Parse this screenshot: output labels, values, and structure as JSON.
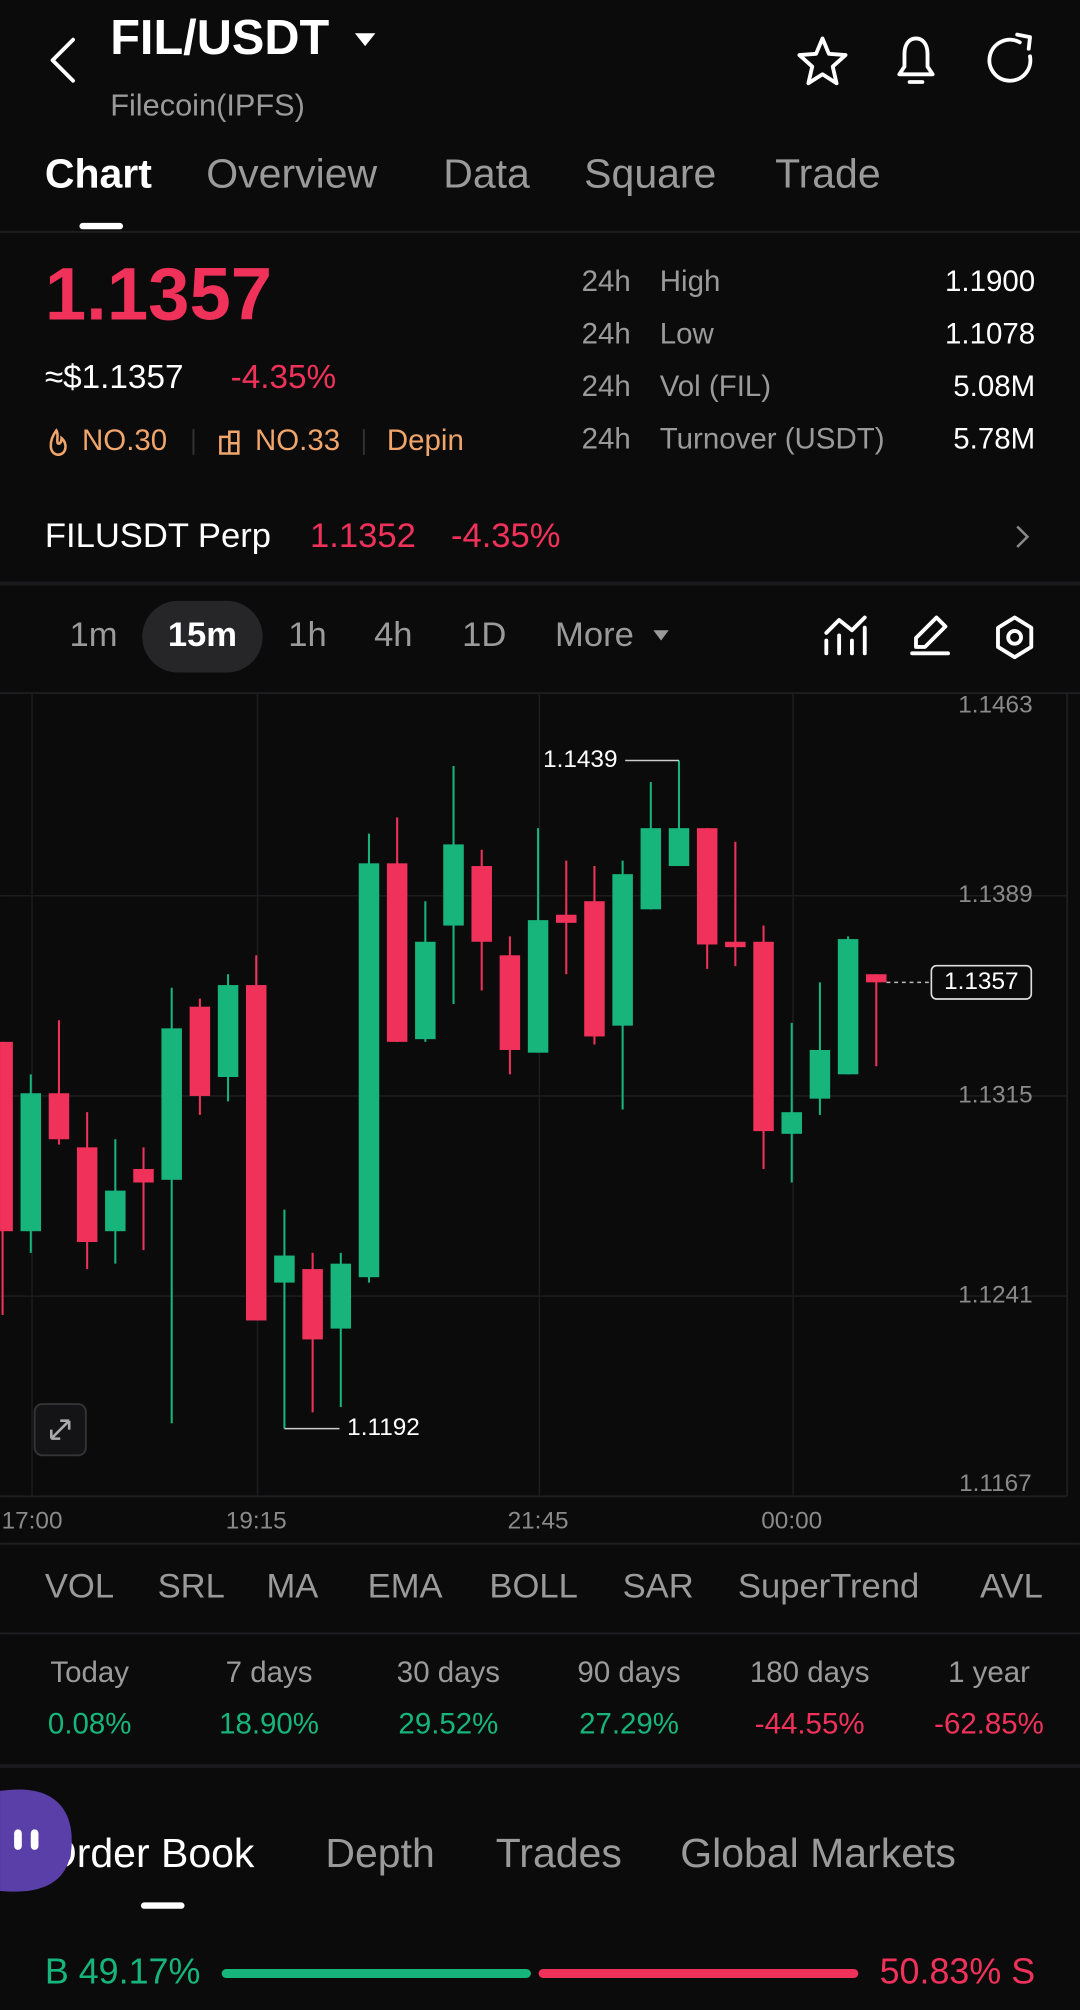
{
  "header": {
    "pair": "FIL/USDT",
    "name": "Filecoin(IPFS)"
  },
  "tabs": [
    "Chart",
    "Overview",
    "Data",
    "Square",
    "Trade"
  ],
  "active_tab": 0,
  "price": {
    "last": "1.1357",
    "usd": "≈$1.1357",
    "change": "-4.35%",
    "rank_hot": "NO.30",
    "rank_gain": "NO.33",
    "sector": "Depin"
  },
  "stats": [
    {
      "period": "24h",
      "label": "High",
      "value": "1.1900"
    },
    {
      "period": "24h",
      "label": "Low",
      "value": "1.1078"
    },
    {
      "period": "24h",
      "label": "Vol (FIL)",
      "value": "5.08M"
    },
    {
      "period": "24h",
      "label": "Turnover (USDT)",
      "value": "5.78M"
    }
  ],
  "perp": {
    "name": "FILUSDT Perp",
    "price": "1.1352",
    "change": "-4.35%"
  },
  "intervals": [
    "1m",
    "15m",
    "1h",
    "4h",
    "1D",
    "More"
  ],
  "selected_interval": 1,
  "chart_data": {
    "type": "candlestick",
    "categories": [
      null,
      "17:00",
      null,
      null,
      null,
      null,
      null,
      null,
      null,
      "19:15",
      null,
      null,
      null,
      null,
      null,
      null,
      null,
      null,
      null,
      "21:45",
      null,
      null,
      null,
      null,
      null,
      null,
      null,
      null,
      "00:00",
      null,
      null,
      null
    ],
    "open": [
      1.1335,
      1.1265,
      1.1316,
      1.1296,
      1.1265,
      1.1288,
      1.1284,
      1.1348,
      1.1322,
      1.1356,
      1.1246,
      1.1251,
      1.1229,
      1.1248,
      1.1401,
      1.1336,
      1.1378,
      1.14,
      1.1367,
      1.1331,
      1.1382,
      1.1387,
      1.1341,
      1.1384,
      1.14,
      1.1414,
      1.1372,
      1.1372,
      1.1301,
      1.1314,
      1.1323,
      1.136
    ],
    "high": [
      1.1335,
      1.1323,
      1.1343,
      1.1309,
      1.1299,
      1.1296,
      1.1355,
      1.1351,
      1.136,
      1.1367,
      1.1273,
      1.1257,
      1.1257,
      1.1412,
      1.1418,
      1.1387,
      1.1437,
      1.1406,
      1.1374,
      1.1414,
      1.1402,
      1.14,
      1.1402,
      1.1431,
      1.1439,
      1.1414,
      1.1409,
      1.1378,
      1.1342,
      1.1357,
      1.1374,
      1.136
    ],
    "low": [
      1.1234,
      1.1257,
      1.1297,
      1.1251,
      1.1253,
      1.1258,
      1.1194,
      1.1308,
      1.1313,
      1.1232,
      1.1192,
      1.1198,
      1.12,
      1.1246,
      1.1335,
      1.1335,
      1.1349,
      1.1354,
      1.1323,
      1.1331,
      1.136,
      1.1334,
      1.131,
      1.1384,
      1.14,
      1.1362,
      1.1363,
      1.1288,
      1.1283,
      1.1308,
      1.1323,
      1.1326
    ],
    "close": [
      1.1265,
      1.1316,
      1.1299,
      1.1261,
      1.128,
      1.1283,
      1.134,
      1.1315,
      1.1356,
      1.1232,
      1.1256,
      1.1225,
      1.1253,
      1.1401,
      1.1335,
      1.1372,
      1.1408,
      1.1372,
      1.1332,
      1.138,
      1.1379,
      1.1337,
      1.1397,
      1.1414,
      1.1414,
      1.1371,
      1.137,
      1.1302,
      1.1309,
      1.1332,
      1.1373,
      1.1357
    ],
    "up_color": "#17b57c",
    "down_color": "#f0325a",
    "ylim": [
      1.1167,
      1.1463
    ],
    "yticks": [
      1.1167,
      1.1241,
      1.1315,
      1.1389,
      1.1463
    ],
    "grid": true
  },
  "indicators": [
    "VOL",
    "SRL",
    "MA",
    "EMA",
    "BOLL",
    "SAR",
    "SuperTrend",
    "AVL"
  ],
  "performance": [
    {
      "period": "Today",
      "change": "0.08%"
    },
    {
      "period": "7 days",
      "change": "18.90%"
    },
    {
      "period": "30 days",
      "change": "29.52%"
    },
    {
      "period": "90 days",
      "change": "27.29%"
    },
    {
      "period": "180 days",
      "change": "-44.55%"
    },
    {
      "period": "1 year",
      "change": "-62.85%"
    }
  ],
  "order_tabs": [
    "Order Book",
    "Depth",
    "Trades",
    "Global Markets"
  ],
  "active_order_tab": 0,
  "ratio": {
    "buy": {
      "value": 49.17,
      "label": "B 49.17%"
    },
    "sell": {
      "value": 50.83,
      "label": "50.83% S"
    }
  }
}
